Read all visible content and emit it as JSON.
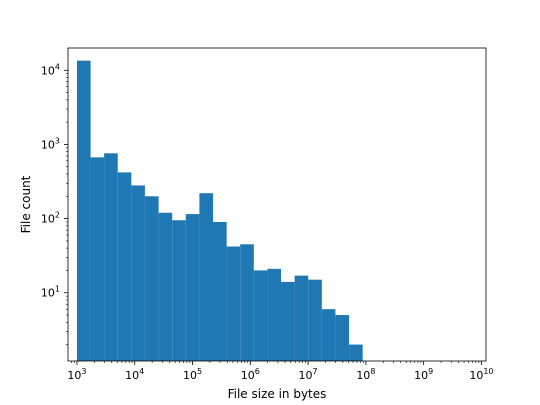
{
  "chart_data": {
    "type": "bar",
    "title": "",
    "xlabel": "File size in bytes",
    "ylabel": "File count",
    "x_scale": "log",
    "y_scale": "log",
    "xlim": [
      700,
      12000000000
    ],
    "ylim": [
      1.2,
      20000
    ],
    "grid": false,
    "bar_color": "#1f77b4",
    "bins": [
      {
        "x0": 1000,
        "x1": 1720,
        "count": 13500
      },
      {
        "x0": 1720,
        "x1": 2950,
        "count": 670
      },
      {
        "x0": 2950,
        "x1": 5080,
        "count": 760
      },
      {
        "x0": 5080,
        "x1": 8740,
        "count": 420
      },
      {
        "x0": 8740,
        "x1": 15000,
        "count": 280
      },
      {
        "x0": 15000,
        "x1": 25900,
        "count": 200
      },
      {
        "x0": 25900,
        "x1": 44500,
        "count": 120
      },
      {
        "x0": 44500,
        "x1": 76500,
        "count": 95
      },
      {
        "x0": 76500,
        "x1": 131600,
        "count": 115
      },
      {
        "x0": 131600,
        "x1": 226300,
        "count": 220
      },
      {
        "x0": 226300,
        "x1": 389100,
        "count": 90
      },
      {
        "x0": 389100,
        "x1": 669000,
        "count": 42
      },
      {
        "x0": 669000,
        "x1": 1150000,
        "count": 45
      },
      {
        "x0": 1150000,
        "x1": 1980000,
        "count": 20
      },
      {
        "x0": 1980000,
        "x1": 3400000,
        "count": 21
      },
      {
        "x0": 3400000,
        "x1": 5850000,
        "count": 14
      },
      {
        "x0": 5850000,
        "x1": 10060000,
        "count": 17
      },
      {
        "x0": 10060000,
        "x1": 17300000,
        "count": 15
      },
      {
        "x0": 17300000,
        "x1": 29700000,
        "count": 6
      },
      {
        "x0": 29700000,
        "x1": 51200000,
        "count": 5
      },
      {
        "x0": 51200000,
        "x1": 88000000,
        "count": 2
      }
    ],
    "x_ticks": [
      {
        "value": 1000,
        "base": "10",
        "exp": "3"
      },
      {
        "value": 10000,
        "base": "10",
        "exp": "4"
      },
      {
        "value": 100000,
        "base": "10",
        "exp": "5"
      },
      {
        "value": 1000000,
        "base": "10",
        "exp": "6"
      },
      {
        "value": 10000000,
        "base": "10",
        "exp": "7"
      },
      {
        "value": 100000000,
        "base": "10",
        "exp": "8"
      },
      {
        "value": 1000000000,
        "base": "10",
        "exp": "9"
      },
      {
        "value": 10000000000,
        "base": "10",
        "exp": "10"
      }
    ],
    "y_ticks": [
      {
        "value": 10,
        "base": "10",
        "exp": "1"
      },
      {
        "value": 100,
        "base": "10",
        "exp": "2"
      },
      {
        "value": 1000,
        "base": "10",
        "exp": "3"
      },
      {
        "value": 10000,
        "base": "10",
        "exp": "4"
      }
    ]
  }
}
